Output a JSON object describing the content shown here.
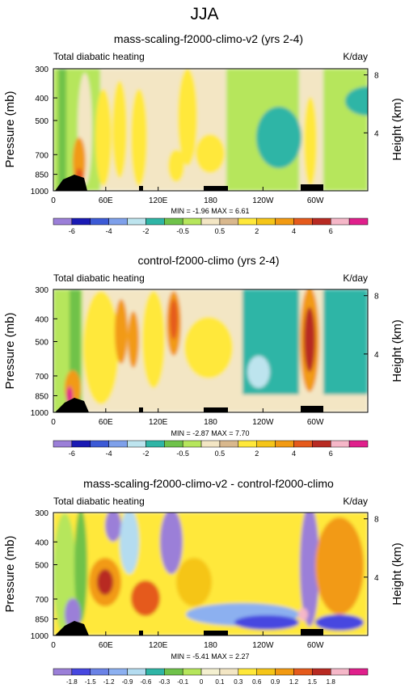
{
  "figure": {
    "title": "JJA"
  },
  "chart_data": [
    {
      "type": "heatmap",
      "title": "mass-scaling-f2000-climo-v2 (yrs 2-4)",
      "left_label": "Total diabatic heating",
      "units": "K/day",
      "ylabel": "Pressure (mb)",
      "ylabel_right": "Height (km)",
      "x_ticks": [
        "0",
        "60E",
        "120E",
        "180",
        "120W",
        "60W"
      ],
      "y_ticks": [
        "300",
        "400",
        "500",
        "700",
        "850",
        "1000"
      ],
      "y_ticks_right": [
        "8",
        "4"
      ],
      "stats": "MIN = -1.96  MAX = 6.61",
      "levels": [
        "-6",
        "-4",
        "-2",
        "-0.5",
        "0.5",
        "2",
        "4",
        "6"
      ],
      "legend_position": "bottom",
      "min": -1.96,
      "max": 6.61
    },
    {
      "type": "heatmap",
      "title": "control-f2000-climo (yrs 2-4)",
      "left_label": "Total diabatic heating",
      "units": "K/day",
      "ylabel": "Pressure (mb)",
      "ylabel_right": "Height (km)",
      "x_ticks": [
        "0",
        "60E",
        "120E",
        "180",
        "120W",
        "60W"
      ],
      "y_ticks": [
        "300",
        "400",
        "500",
        "700",
        "850",
        "1000"
      ],
      "y_ticks_right": [
        "8",
        "4"
      ],
      "stats": "MIN = -2.87  MAX = 7.70",
      "levels": [
        "-6",
        "-4",
        "-2",
        "-0.5",
        "0.5",
        "2",
        "4",
        "6"
      ],
      "legend_position": "bottom",
      "min": -2.87,
      "max": 7.7
    },
    {
      "type": "heatmap",
      "title": "mass-scaling-f2000-climo-v2 - control-f2000-climo",
      "left_label": "Total diabatic heating",
      "units": "K/day",
      "ylabel": "Pressure (mb)",
      "ylabel_right": "Height (km)",
      "x_ticks": [
        "0",
        "60E",
        "120E",
        "180",
        "120W",
        "60W"
      ],
      "y_ticks": [
        "300",
        "400",
        "500",
        "700",
        "850",
        "1000"
      ],
      "y_ticks_right": [
        "8",
        "4"
      ],
      "stats": "MIN = -5.41  MAX = 2.27",
      "levels": [
        "-1.8",
        "-1.5",
        "-1.2",
        "-0.9",
        "-0.6",
        "-0.3",
        "-0.1",
        "0",
        "0.1",
        "0.3",
        "0.6",
        "0.9",
        "1.2",
        "1.5",
        "1.8"
      ],
      "legend_position": "bottom",
      "min": -5.41,
      "max": 2.27
    }
  ],
  "palette_abs": [
    "#9b7fd8",
    "#1a1ab4",
    "#3c5ad6",
    "#7ea0ea",
    "#bde4ee",
    "#2fb5a6",
    "#6fc24a",
    "#b6e65c",
    "#f3e6c4",
    "#d9b88d",
    "#ffe83a",
    "#f5c518",
    "#f29a12",
    "#e55a1c",
    "#b82a22",
    "#f5b7c8",
    "#e0208c"
  ],
  "palette_diff": [
    "#9b7fd8",
    "#4747e0",
    "#6a82e6",
    "#8cb0f0",
    "#b4dcf0",
    "#2fb5a6",
    "#6fc24a",
    "#b6e65c",
    "#f4f0d0",
    "#f3e6c4",
    "#ffe83a",
    "#f5c518",
    "#f29a12",
    "#e55a1c",
    "#b82a22",
    "#f5b7c8",
    "#e0208c"
  ]
}
